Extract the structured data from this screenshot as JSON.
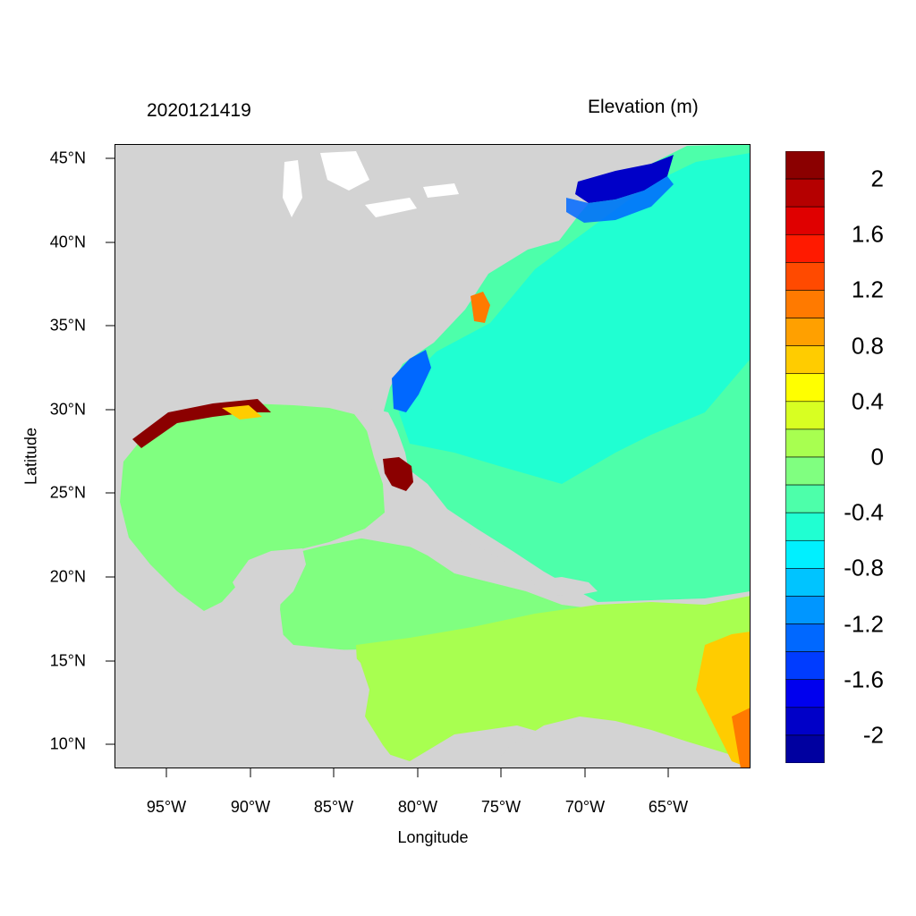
{
  "header": {
    "timestamp": "2020121419",
    "colorbar_title": "Elevation (m)"
  },
  "axes": {
    "x_title": "Longitude",
    "y_title": "Latitude",
    "x_ticks": [
      "95°W",
      "90°W",
      "85°W",
      "80°W",
      "75°W",
      "70°W",
      "65°W"
    ],
    "y_ticks": [
      "45°N",
      "40°N",
      "35°N",
      "30°N",
      "25°N",
      "20°N",
      "15°N",
      "10°N"
    ]
  },
  "colorbar": {
    "labels": [
      "2",
      "1.6",
      "1.2",
      "0.8",
      "0.4",
      "0",
      "-0.4",
      "-0.8",
      "-1.2",
      "-1.6",
      "-2"
    ],
    "colors_top_to_bottom": [
      "#8b0000",
      "#b50000",
      "#e00000",
      "#ff1a00",
      "#ff4a00",
      "#ff7a00",
      "#ffa000",
      "#ffcc00",
      "#ffff00",
      "#d8ff22",
      "#a8ff50",
      "#80ff80",
      "#4dffaa",
      "#20ffd2",
      "#00f0ff",
      "#00c4ff",
      "#0096ff",
      "#0068ff",
      "#003cff",
      "#0000ee",
      "#0000c8",
      "#0000a0"
    ]
  },
  "colors": {
    "land": "#d3d3d3",
    "ocean_mid": "#4dffaa",
    "gulf": "#80ff80",
    "caribbean_south": "#a8ff50",
    "maine_surge": "#0000c8",
    "florida_surge": "#8b0000"
  }
}
